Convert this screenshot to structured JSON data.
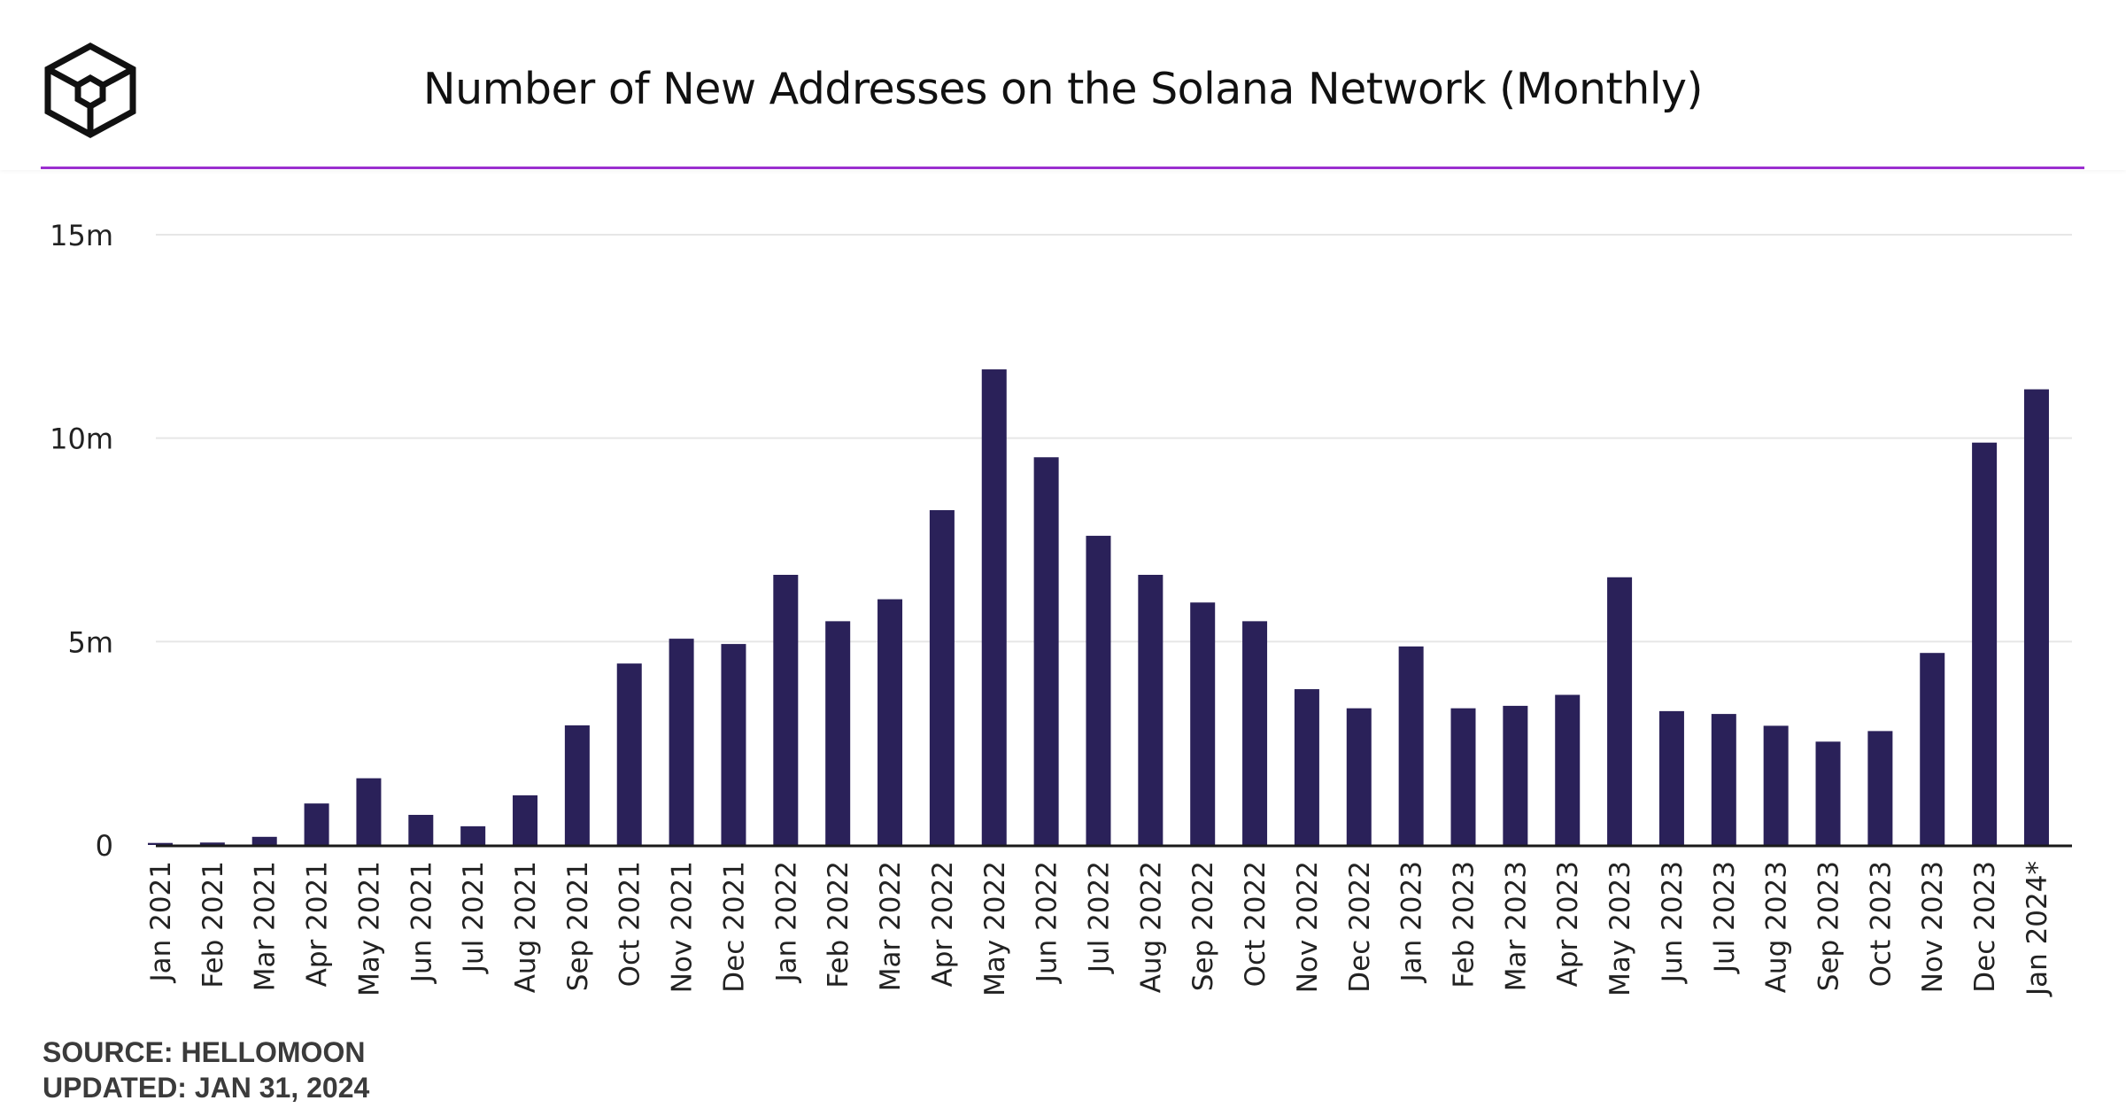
{
  "header": {
    "title": "Number of New Addresses on the Solana Network (Monthly)",
    "logo_icon": "cube-logo-icon"
  },
  "colors": {
    "bar": "#2a2159",
    "accent_line": "#9b2fd0",
    "grid": "#e6e6e6",
    "axis": "#1a1a1a",
    "tick_text": "#222222"
  },
  "chart_data": {
    "type": "bar",
    "title": "Number of New Addresses on the Solana Network (Monthly)",
    "xlabel": "",
    "ylabel": "",
    "ylim": [
      0,
      15000000
    ],
    "grid": true,
    "y_ticks": [
      0,
      5000000,
      10000000,
      15000000
    ],
    "y_tick_labels": [
      "0",
      "5m",
      "10m",
      "15m"
    ],
    "categories": [
      "Jan 2021",
      "Feb 2021",
      "Mar 2021",
      "Apr 2021",
      "May 2021",
      "Jun 2021",
      "Jul 2021",
      "Aug 2021",
      "Sep 2021",
      "Oct 2021",
      "Nov 2021",
      "Dec 2021",
      "Jan 2022",
      "Feb 2022",
      "Mar 2022",
      "Apr 2022",
      "May 2022",
      "Jun 2022",
      "Jul 2022",
      "Aug 2022",
      "Sep 2022",
      "Oct 2022",
      "Nov 2022",
      "Dec 2022",
      "Jan 2023",
      "Feb 2023",
      "Mar 2023",
      "Apr 2023",
      "May 2023",
      "Jun 2023",
      "Jul 2023",
      "Aug 2023",
      "Sep 2023",
      "Oct 2023",
      "Nov 2023",
      "Dec 2023",
      "Jan 2024*"
    ],
    "values": [
      50000,
      60000,
      200000,
      1020000,
      1640000,
      740000,
      460000,
      1220000,
      2940000,
      4460000,
      5070000,
      4940000,
      6640000,
      5500000,
      6040000,
      8230000,
      11690000,
      9530000,
      7600000,
      6640000,
      5960000,
      5500000,
      3830000,
      3360000,
      4880000,
      3360000,
      3420000,
      3690000,
      6580000,
      3290000,
      3220000,
      2930000,
      2540000,
      2800000,
      4720000,
      9890000,
      11200000
    ]
  },
  "footer": {
    "source": "SOURCE: HELLOMOON",
    "updated": "UPDATED: JAN 31, 2024"
  }
}
